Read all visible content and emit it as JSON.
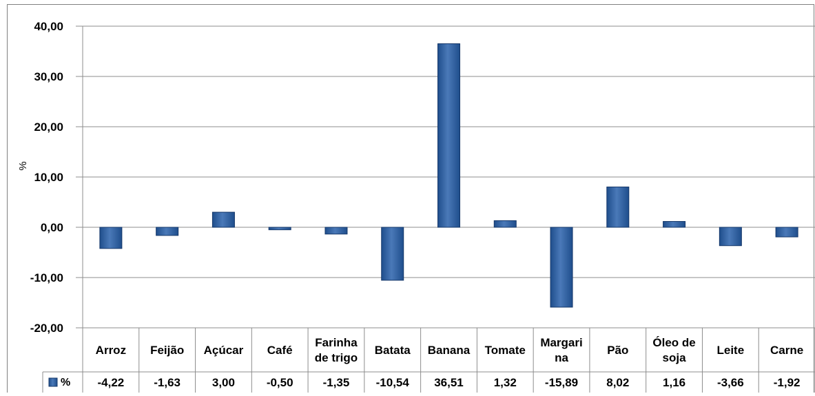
{
  "chart_data": {
    "type": "bar",
    "categories": [
      "Arroz",
      "Feijão",
      "Açúcar",
      "Café",
      "Farinha de trigo",
      "Batata",
      "Banana",
      "Tomate",
      "Margarina",
      "Pão",
      "Óleo de soja",
      "Leite",
      "Carne"
    ],
    "category_label_lines": [
      [
        "Arroz"
      ],
      [
        "Feijão"
      ],
      [
        "Açúcar"
      ],
      [
        "Café"
      ],
      [
        "Farinha",
        "de trigo"
      ],
      [
        "Batata"
      ],
      [
        "Banana"
      ],
      [
        "Tomate"
      ],
      [
        "Margari",
        "na"
      ],
      [
        "Pão"
      ],
      [
        "Óleo de",
        "soja"
      ],
      [
        "Leite"
      ],
      [
        "Carne"
      ]
    ],
    "series": [
      {
        "name": "%",
        "values": [
          -4.22,
          -1.63,
          3.0,
          -0.5,
          -1.35,
          -10.54,
          36.51,
          1.32,
          -15.89,
          8.02,
          1.16,
          -3.66,
          -1.92
        ],
        "value_labels": [
          "-4,22",
          "-1,63",
          "3,00",
          "-0,50",
          "-1,35",
          "-10,54",
          "36,51",
          "1,32",
          "-15,89",
          "8,02",
          "1,16",
          "-3,66",
          "-1,92"
        ]
      }
    ],
    "ylabel": "%",
    "ylim": [
      -20,
      40
    ],
    "yticks": [
      40,
      30,
      20,
      10,
      0,
      -10,
      -20
    ],
    "ytick_labels": [
      "40,00",
      "30,00",
      "20,00",
      "10,00",
      "0,00",
      "-10,00",
      "-20,00"
    ],
    "grid": true,
    "data_table": true,
    "colors": {
      "bar": "#1f4e8c",
      "bar_highlight": "#4a79b8",
      "grid": "#8c8c8c",
      "text": "#000000"
    }
  }
}
